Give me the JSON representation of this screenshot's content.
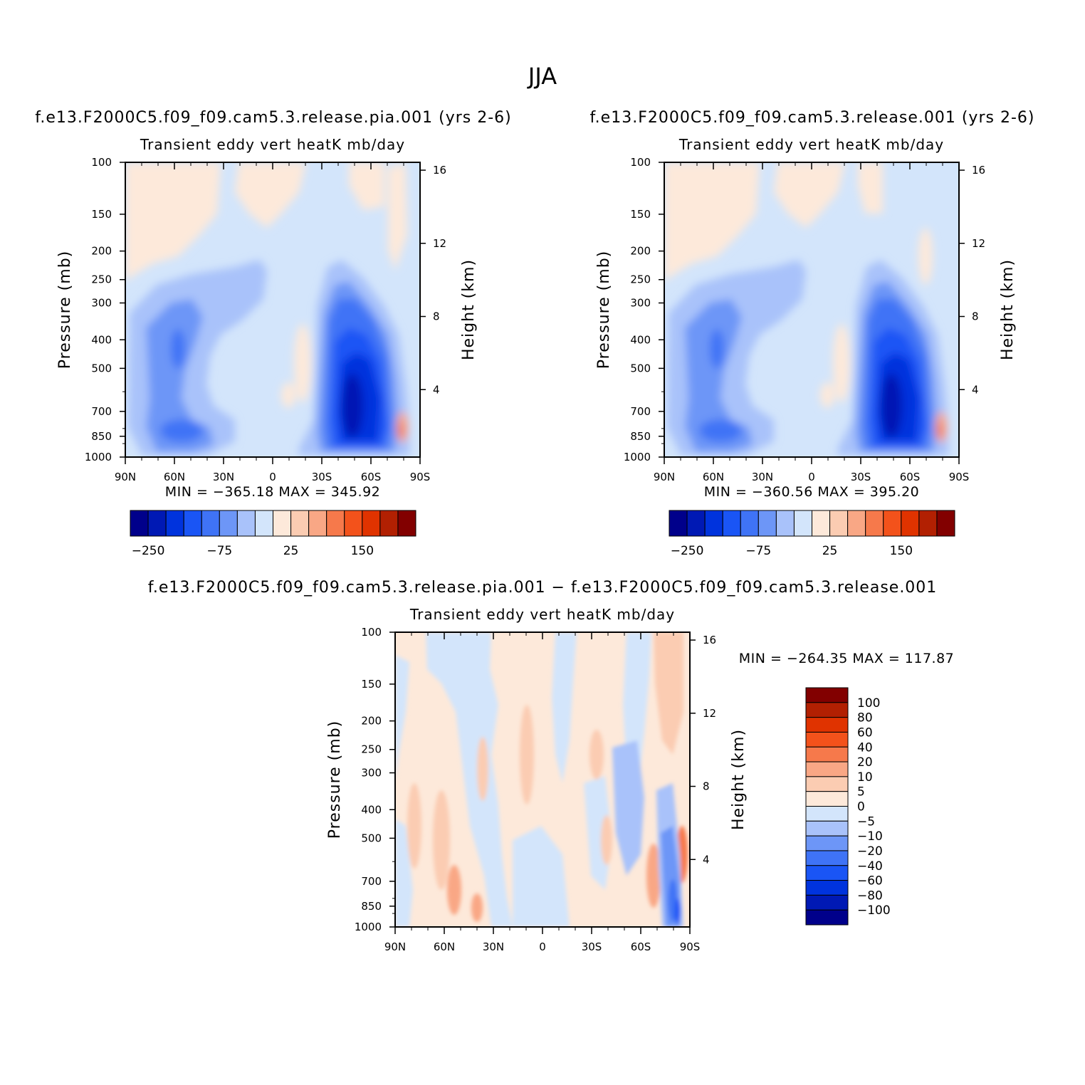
{
  "figure": {
    "title": "JJA"
  },
  "palette": {
    "full": [
      "#00008b",
      "#0019b4",
      "#0033dd",
      "#1a55f5",
      "#3f73f6",
      "#6d96f7",
      "#a9c2fa",
      "#d3e5fb",
      "#fde9da",
      "#fbccb2",
      "#f9a785",
      "#f6794b",
      "#f3521b",
      "#e03300",
      "#b22002",
      "#820000"
    ],
    "diff": [
      "#00008b",
      "#0019b4",
      "#0033dd",
      "#1a55f5",
      "#3f73f6",
      "#6d96f7",
      "#a9c2fa",
      "#d3e5fb",
      "#fde9da",
      "#fbccb2",
      "#f9a785",
      "#f6794b",
      "#f3521b",
      "#e03300",
      "#b22002",
      "#820000"
    ]
  },
  "panels": {
    "test": {
      "case_title": "f.e13.F2000C5.f09_f09.cam5.3.release.pia.001 (yrs 2-6)",
      "subtitle": "Transient eddy vert heatK mb/day",
      "min_max": "MIN = −365.18   MAX = 345.92"
    },
    "control": {
      "case_title": "f.e13.F2000C5.f09_f09.cam5.3.release.001 (yrs 2-6)",
      "subtitle": "Transient eddy vert heatK mb/day",
      "min_max": "MIN = −360.56   MAX = 395.20"
    },
    "diff": {
      "case_title": "f.e13.F2000C5.f09_f09.cam5.3.release.pia.001 − f.e13.F2000C5.f09_f09.cam5.3.release.001",
      "subtitle": "Transient eddy vert heatK mb/day",
      "min_max": "MIN = −264.35   MAX = 117.87"
    }
  },
  "axes": {
    "y_label": "Pressure (mb)",
    "y2_label": "Height (km)",
    "pressure_ticks": [
      "100",
      "150",
      "200",
      "250",
      "300",
      "400",
      "500",
      "700",
      "850",
      "1000"
    ],
    "height_ticks": [
      "16",
      "12",
      "8",
      "4"
    ],
    "lat_ticks": [
      "90N",
      "60N",
      "30N",
      "0",
      "30S",
      "60S",
      "90S"
    ]
  },
  "colorbars": {
    "full_labels": [
      "−250",
      "−75",
      "25",
      "150"
    ],
    "diff_labels": [
      "100",
      "80",
      "60",
      "40",
      "20",
      "10",
      "5",
      "0",
      "−5",
      "−10",
      "−20",
      "−40",
      "−60",
      "−80",
      "−100"
    ]
  },
  "chart_data": [
    {
      "type": "heatmap",
      "title": "f.e13.F2000C5.f09_f09.cam5.3.release.pia.001 (yrs 2-6)",
      "subtitle": "Transient eddy vert heatK mb/day",
      "xlabel": "",
      "ylabel": "Pressure (mb)",
      "y2label": "Height (km)",
      "x_ticks": [
        "90N",
        "60N",
        "30N",
        "0",
        "30S",
        "60S",
        "90S"
      ],
      "y_ticks": [
        100,
        150,
        200,
        250,
        300,
        400,
        500,
        700,
        850,
        1000
      ],
      "y_scale": "log",
      "ylim": [
        1000,
        100
      ],
      "min": -365.18,
      "max": 345.92,
      "features": [
        {
          "lat": 68,
          "p": 450,
          "value": -100
        },
        {
          "lat": 65,
          "p": 820,
          "value": -150
        },
        {
          "lat": -50,
          "p": 600,
          "value": -300
        },
        {
          "lat": -80,
          "p": 830,
          "value": 100
        }
      ]
    },
    {
      "type": "heatmap",
      "title": "f.e13.F2000C5.f09_f09.cam5.3.release.001 (yrs 2-6)",
      "subtitle": "Transient eddy vert heatK mb/day",
      "xlabel": "",
      "ylabel": "Pressure (mb)",
      "y2label": "Height (km)",
      "x_ticks": [
        "90N",
        "60N",
        "30N",
        "0",
        "30S",
        "60S",
        "90S"
      ],
      "y_ticks": [
        100,
        150,
        200,
        250,
        300,
        400,
        500,
        700,
        850,
        1000
      ],
      "y_scale": "log",
      "ylim": [
        1000,
        100
      ],
      "min": -360.56,
      "max": 395.2,
      "features": [
        {
          "lat": 68,
          "p": 450,
          "value": -100
        },
        {
          "lat": 65,
          "p": 820,
          "value": -150
        },
        {
          "lat": -50,
          "p": 600,
          "value": -300
        },
        {
          "lat": -80,
          "p": 830,
          "value": 100
        }
      ]
    },
    {
      "type": "heatmap",
      "title": "f.e13.F2000C5.f09_f09.cam5.3.release.pia.001 − f.e13.F2000C5.f09_f09.cam5.3.release.001",
      "subtitle": "Transient eddy vert heatK mb/day",
      "xlabel": "",
      "ylabel": "Pressure (mb)",
      "y2label": "Height (km)",
      "x_ticks": [
        "90N",
        "60N",
        "30N",
        "0",
        "30S",
        "60S",
        "90S"
      ],
      "y_ticks": [
        100,
        150,
        200,
        250,
        300,
        400,
        500,
        700,
        850,
        1000
      ],
      "y_scale": "log",
      "ylim": [
        1000,
        100
      ],
      "min": -264.35,
      "max": 117.87,
      "levels": [
        -100,
        -80,
        -60,
        -40,
        -20,
        -10,
        -5,
        0,
        5,
        10,
        20,
        40,
        60,
        80,
        100
      ]
    }
  ]
}
